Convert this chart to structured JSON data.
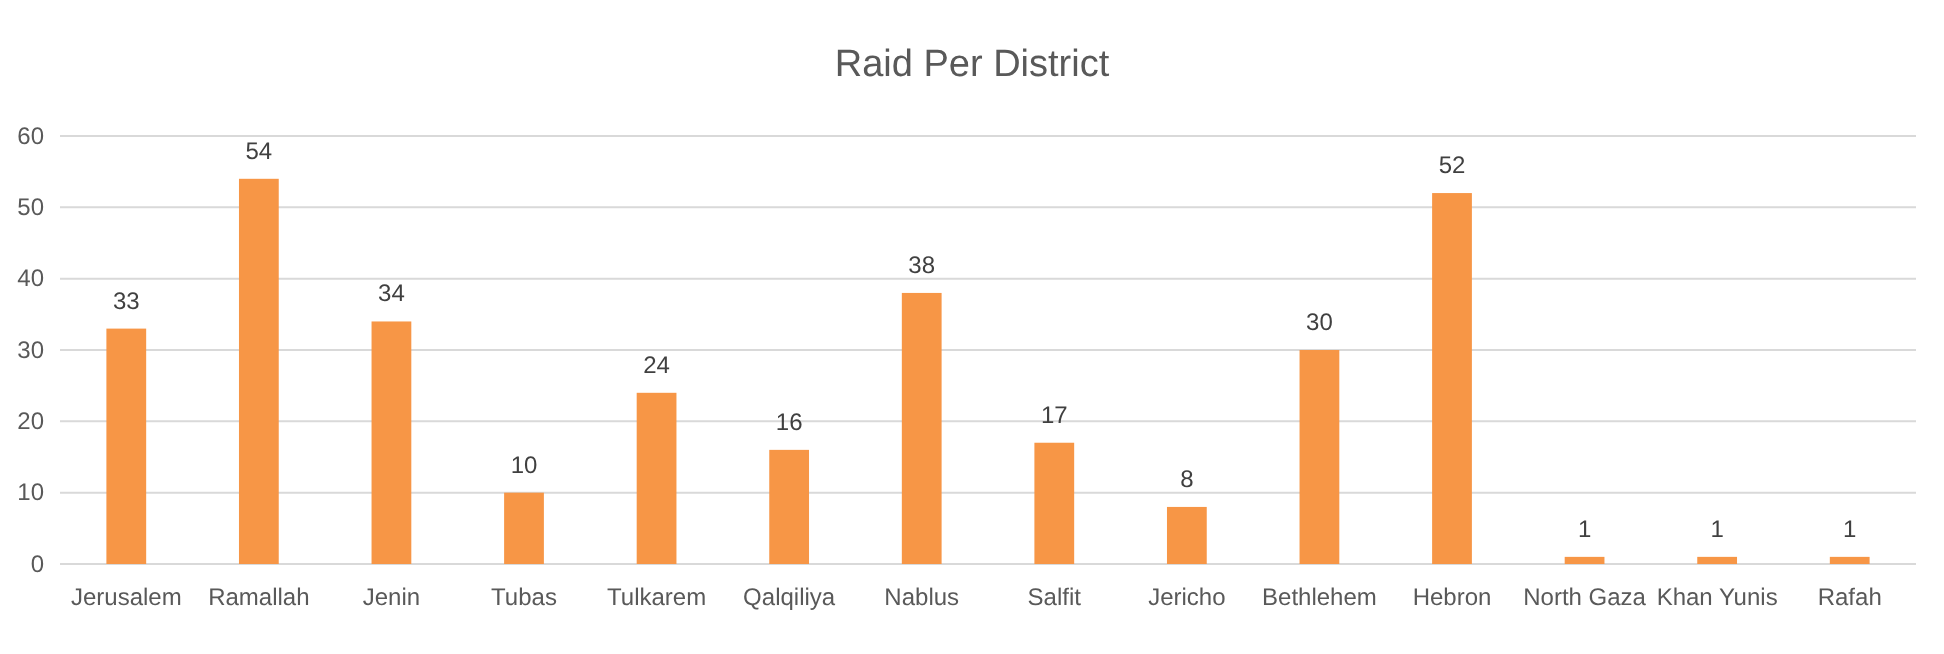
{
  "chart_data": {
    "type": "bar",
    "title": "Raid Per District",
    "categories": [
      "Jerusalem",
      "Ramallah",
      "Jenin",
      "Tubas",
      "Tulkarem",
      "Qalqiliya",
      "Nablus",
      "Salfit",
      "Jericho",
      "Bethlehem",
      "Hebron",
      "North Gaza",
      "Khan Yunis",
      "Rafah"
    ],
    "values": [
      33,
      54,
      34,
      10,
      24,
      16,
      38,
      17,
      8,
      30,
      52,
      1,
      1,
      1
    ],
    "color": "#f79646",
    "ylim": [
      0,
      60
    ],
    "yticks": [
      0,
      10,
      20,
      30,
      40,
      50,
      60
    ],
    "grid": "y",
    "data_labels": true
  }
}
